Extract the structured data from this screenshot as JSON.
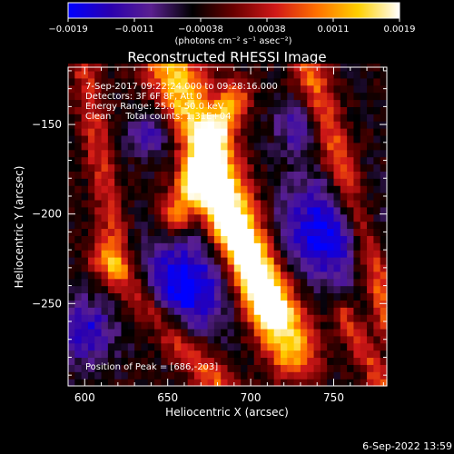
{
  "chart_data": {
    "type": "heatmap",
    "title": "Reconstructed RHESSI Image",
    "xlabel": "Heliocentric X (arcsec)",
    "ylabel": "Heliocentric Y (arcsec)",
    "xlim": [
      590,
      782
    ],
    "ylim": [
      -296,
      -118
    ],
    "x_ticks": [
      "600",
      "650",
      "700",
      "750"
    ],
    "x_tick_values": [
      600,
      650,
      700,
      750
    ],
    "y_ticks": [
      "-150",
      "-200",
      "-250"
    ],
    "y_tick_values": [
      -150,
      -200,
      -250
    ],
    "colorbar": {
      "tick_labels": [
        "-0.0019",
        "-0.0011",
        "-0.00038",
        "0.00038",
        "0.0011",
        "0.0019"
      ],
      "range": [
        -0.0019,
        0.0019
      ],
      "unit_label": "(photons cm⁻² s⁻¹ asec⁻²)",
      "colormap": [
        "#0000ff",
        "#2a00b0",
        "#5a2090",
        "#000000",
        "#6a0000",
        "#d01818",
        "#ff7000",
        "#ffd000",
        "#ffffff"
      ]
    },
    "annotations": [
      "7-Sep-2017 09:22:24.000 to 09:28:16.000",
      "Detectors: 3F 6F 8F, Att 0",
      "Energy Range: 25.0 - 50.0 keV",
      "Clean     Total counts: 1.31E+04"
    ],
    "peak_label": "Position of Peak = [686,-203]",
    "peak": {
      "x": 686,
      "y": -203
    },
    "structures": [
      {
        "x1": 648,
        "y1": -108,
        "x2": 725,
        "y2": -275,
        "w": 11,
        "v": 0.0019,
        "note": "main bright ridge"
      },
      {
        "x1": 690,
        "y1": -135,
        "x2": 655,
        "y2": -200,
        "w": 7,
        "v": 0.0014
      },
      {
        "x1": 672,
        "y1": -180,
        "x2": 712,
        "y2": -255,
        "w": 8,
        "v": 0.0015
      },
      {
        "x1": 600,
        "y1": -120,
        "x2": 620,
        "y2": -225,
        "w": 6,
        "v": 0.0009
      },
      {
        "x1": 612,
        "y1": -225,
        "x2": 685,
        "y2": -300,
        "w": 7,
        "v": 0.0012
      },
      {
        "x1": 735,
        "y1": -120,
        "x2": 785,
        "y2": -260,
        "w": 7,
        "v": 0.0013
      },
      {
        "x1": 755,
        "y1": -255,
        "x2": 782,
        "y2": -300,
        "w": 5,
        "v": 0.001
      }
    ],
    "dim_regions": [
      {
        "cx": 660,
        "cy": -240,
        "r": 18,
        "v": -0.0016
      },
      {
        "cx": 745,
        "cy": -210,
        "r": 20,
        "v": -0.0015
      },
      {
        "cx": 730,
        "cy": -150,
        "r": 10,
        "v": -0.001
      },
      {
        "cx": 600,
        "cy": -265,
        "r": 12,
        "v": -0.0012
      },
      {
        "cx": 640,
        "cy": -155,
        "r": 9,
        "v": -0.0009
      }
    ]
  },
  "footer_date": "6-Sep-2022 13:59"
}
